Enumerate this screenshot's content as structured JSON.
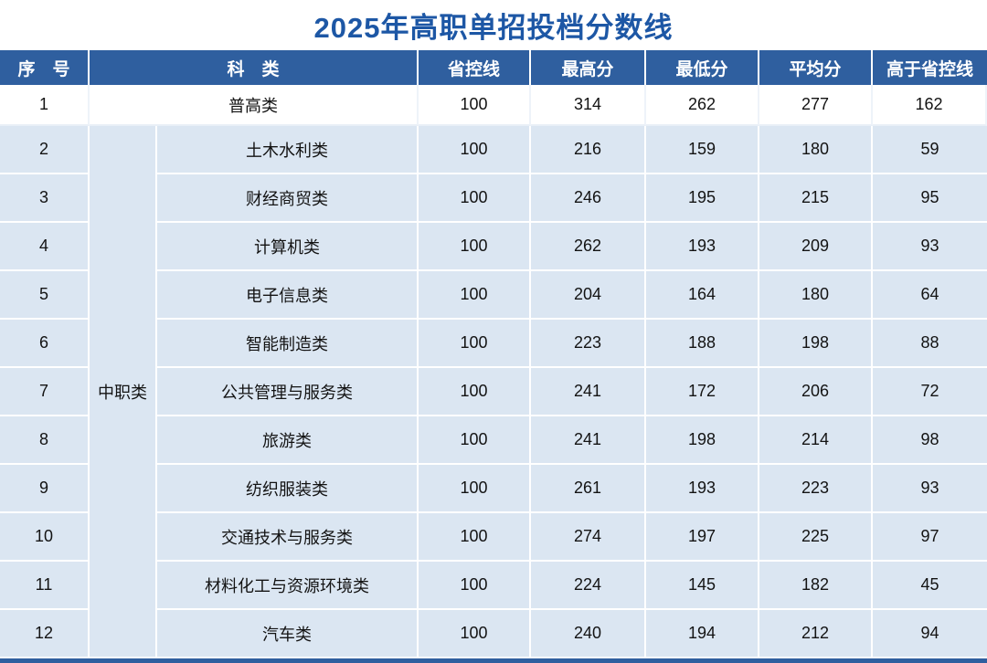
{
  "chart_data": {
    "type": "table",
    "title": "2025年高职单招投档分数线",
    "columns": [
      "序　号",
      "科　类",
      "省控线",
      "最高分",
      "最低分",
      "平均分",
      "高于省控线"
    ],
    "group_label": "中职类",
    "group_span_rows": [
      2,
      12
    ],
    "rows": [
      {
        "no": 1,
        "category": "普高类",
        "control_line": 100,
        "max": 314,
        "min": 262,
        "avg": 277,
        "above_control": 162
      },
      {
        "no": 2,
        "category": "土木水利类",
        "control_line": 100,
        "max": 216,
        "min": 159,
        "avg": 180,
        "above_control": 59
      },
      {
        "no": 3,
        "category": "财经商贸类",
        "control_line": 100,
        "max": 246,
        "min": 195,
        "avg": 215,
        "above_control": 95
      },
      {
        "no": 4,
        "category": "计算机类",
        "control_line": 100,
        "max": 262,
        "min": 193,
        "avg": 209,
        "above_control": 93
      },
      {
        "no": 5,
        "category": "电子信息类",
        "control_line": 100,
        "max": 204,
        "min": 164,
        "avg": 180,
        "above_control": 64
      },
      {
        "no": 6,
        "category": "智能制造类",
        "control_line": 100,
        "max": 223,
        "min": 188,
        "avg": 198,
        "above_control": 88
      },
      {
        "no": 7,
        "category": "公共管理与服务类",
        "control_line": 100,
        "max": 241,
        "min": 172,
        "avg": 206,
        "above_control": 72
      },
      {
        "no": 8,
        "category": "旅游类",
        "control_line": 100,
        "max": 241,
        "min": 198,
        "avg": 214,
        "above_control": 98
      },
      {
        "no": 9,
        "category": "纺织服装类",
        "control_line": 100,
        "max": 261,
        "min": 193,
        "avg": 223,
        "above_control": 93
      },
      {
        "no": 10,
        "category": "交通技术与服务类",
        "control_line": 100,
        "max": 274,
        "min": 197,
        "avg": 225,
        "above_control": 97
      },
      {
        "no": 11,
        "category": "材料化工与资源环境类",
        "control_line": 100,
        "max": 224,
        "min": 145,
        "avg": 182,
        "above_control": 45
      },
      {
        "no": 12,
        "category": "汽车类",
        "control_line": 100,
        "max": 240,
        "min": 194,
        "avg": 212,
        "above_control": 94
      }
    ]
  },
  "colors": {
    "title_text": "#1d57a5",
    "header_bg": "#2f5f9f",
    "header_text": "#ffffff",
    "row_blue_bg": "#dbe6f2",
    "row_white_bg": "#ffffff",
    "grid_line": "#ffffff"
  }
}
